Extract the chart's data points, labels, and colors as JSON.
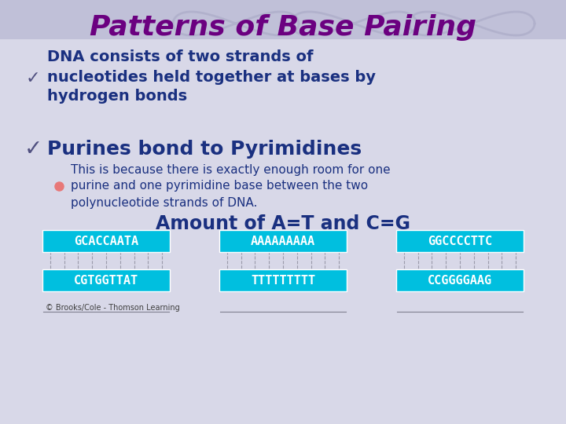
{
  "title": "Patterns of Base Pairing",
  "title_color": "#6B0080",
  "bg_color": "#D8D8E8",
  "bg_top_color": "#C8C8DC",
  "bullet1": "DNA consists of two strands of\nnucleotides held together at bases by\nhydrogen bonds",
  "bullet2": "Purines bond to Pyrimidines",
  "sub_bullet": "This is because there is exactly enough room for one\npurine and one pyrimidine base between the two\npolynucleotide strands of DNA.",
  "amount_text": "Amount of A=T and C=G",
  "amount_color": "#1A3080",
  "body_color": "#1A3080",
  "check_color": "#505080",
  "dna_pairs": [
    {
      "top": "GCACCAATA",
      "bottom": "CGTGGTTAT"
    },
    {
      "top": "AAAAAAAAA",
      "bottom": "TTTTTTTTT"
    },
    {
      "top": "GGCCCCTTC",
      "bottom": "CCGGGGAAG"
    }
  ],
  "dna_bg": "#00BFDF",
  "dna_text_color": "#FFFFFF",
  "copyright": "© Brooks/Cole - Thomson Learning"
}
